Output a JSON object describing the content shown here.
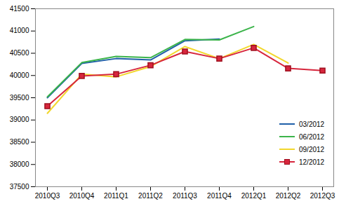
{
  "chart_data": {
    "type": "line",
    "categories": [
      "2010Q3",
      "2010Q4",
      "2011Q1",
      "2011Q2",
      "2011Q3",
      "2011Q4",
      "2012Q1",
      "2012Q2",
      "2012Q3"
    ],
    "series": [
      {
        "name": "03/2012",
        "color": "#1f5fa8",
        "values": [
          39500,
          40270,
          40380,
          40350,
          40780,
          40820,
          null,
          null,
          null
        ]
      },
      {
        "name": "06/2012",
        "color": "#3cb44b",
        "values": [
          39520,
          40290,
          40430,
          40400,
          40810,
          40800,
          41100,
          null,
          null
        ]
      },
      {
        "name": "09/2012",
        "color": "#f2d72c",
        "values": [
          39150,
          40030,
          39970,
          40200,
          40650,
          40380,
          40700,
          40280,
          null
        ]
      },
      {
        "name": "12/2012",
        "color": "#d7263d",
        "marker": "square",
        "values": [
          39310,
          39990,
          40030,
          40230,
          40540,
          40380,
          40620,
          40160,
          40110
        ]
      }
    ],
    "ylim": [
      37500,
      41500
    ],
    "yticks": [
      37500,
      38000,
      38500,
      39000,
      39500,
      40000,
      40500,
      41000,
      41500
    ],
    "grid": false,
    "legend": "right"
  }
}
